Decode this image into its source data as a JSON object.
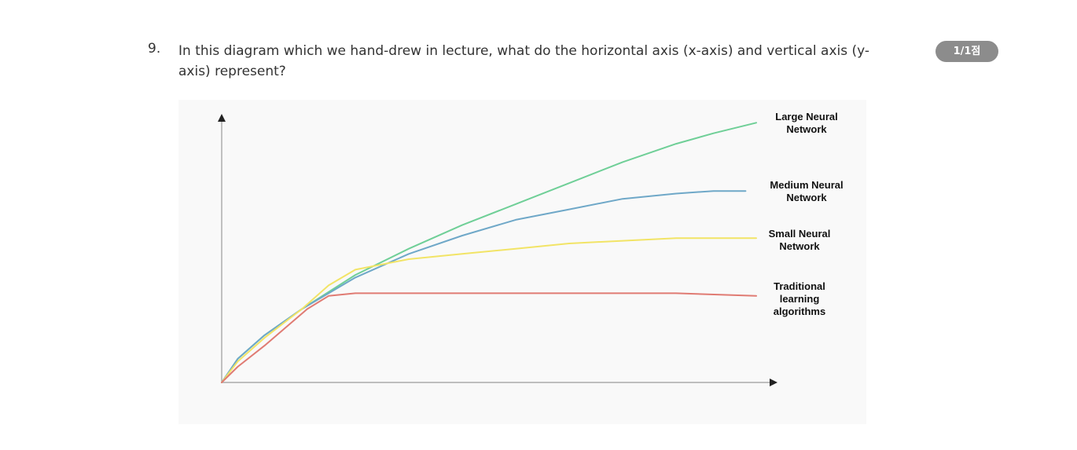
{
  "question": {
    "number": "9.",
    "text": "In this diagram which we hand-drew in lecture, what do the horizontal axis (x-axis) and vertical axis (y-axis) represent?",
    "score": "1/1점"
  },
  "chart_data": {
    "type": "line",
    "title": "",
    "xlabel": "",
    "ylabel": "",
    "xlim": [
      0,
      100
    ],
    "ylim": [
      0,
      100
    ],
    "grid": false,
    "series": [
      {
        "name": "Large Neural Network",
        "label_lines": [
          "Large Neural",
          "Network"
        ],
        "color": "#6fcf97",
        "x": [
          0,
          3,
          8,
          15,
          25,
          35,
          45,
          55,
          65,
          75,
          85,
          92,
          100
        ],
        "y": [
          0,
          9,
          18,
          28,
          41,
          51,
          60,
          68,
          76,
          84,
          91,
          95,
          99
        ]
      },
      {
        "name": "Medium Neural Network",
        "label_lines": [
          "Medium Neural",
          "Network"
        ],
        "color": "#6fa8c8",
        "x": [
          0,
          3,
          8,
          15,
          25,
          35,
          45,
          55,
          65,
          75,
          85,
          92,
          98
        ],
        "y": [
          0,
          9,
          18,
          28,
          40,
          49,
          56,
          62,
          66,
          70,
          72,
          73,
          73
        ]
      },
      {
        "name": "Small Neural Network",
        "label_lines": [
          "Small Neural",
          "Network"
        ],
        "color": "#f2e466",
        "x": [
          0,
          3,
          8,
          15,
          20,
          25,
          35,
          45,
          55,
          65,
          75,
          85,
          100
        ],
        "y": [
          0,
          8,
          17,
          28,
          37,
          43,
          47,
          49,
          51,
          53,
          54,
          55,
          55
        ]
      },
      {
        "name": "Traditional learning algorithms",
        "label_lines": [
          "Traditional",
          "learning",
          "algorithms"
        ],
        "color": "#e07b73",
        "x": [
          0,
          3,
          8,
          12,
          16,
          20,
          25,
          35,
          45,
          55,
          65,
          75,
          85,
          100
        ],
        "y": [
          0,
          6,
          14,
          21,
          28,
          33,
          34,
          34,
          34,
          34,
          34,
          34,
          34,
          33
        ]
      }
    ]
  }
}
